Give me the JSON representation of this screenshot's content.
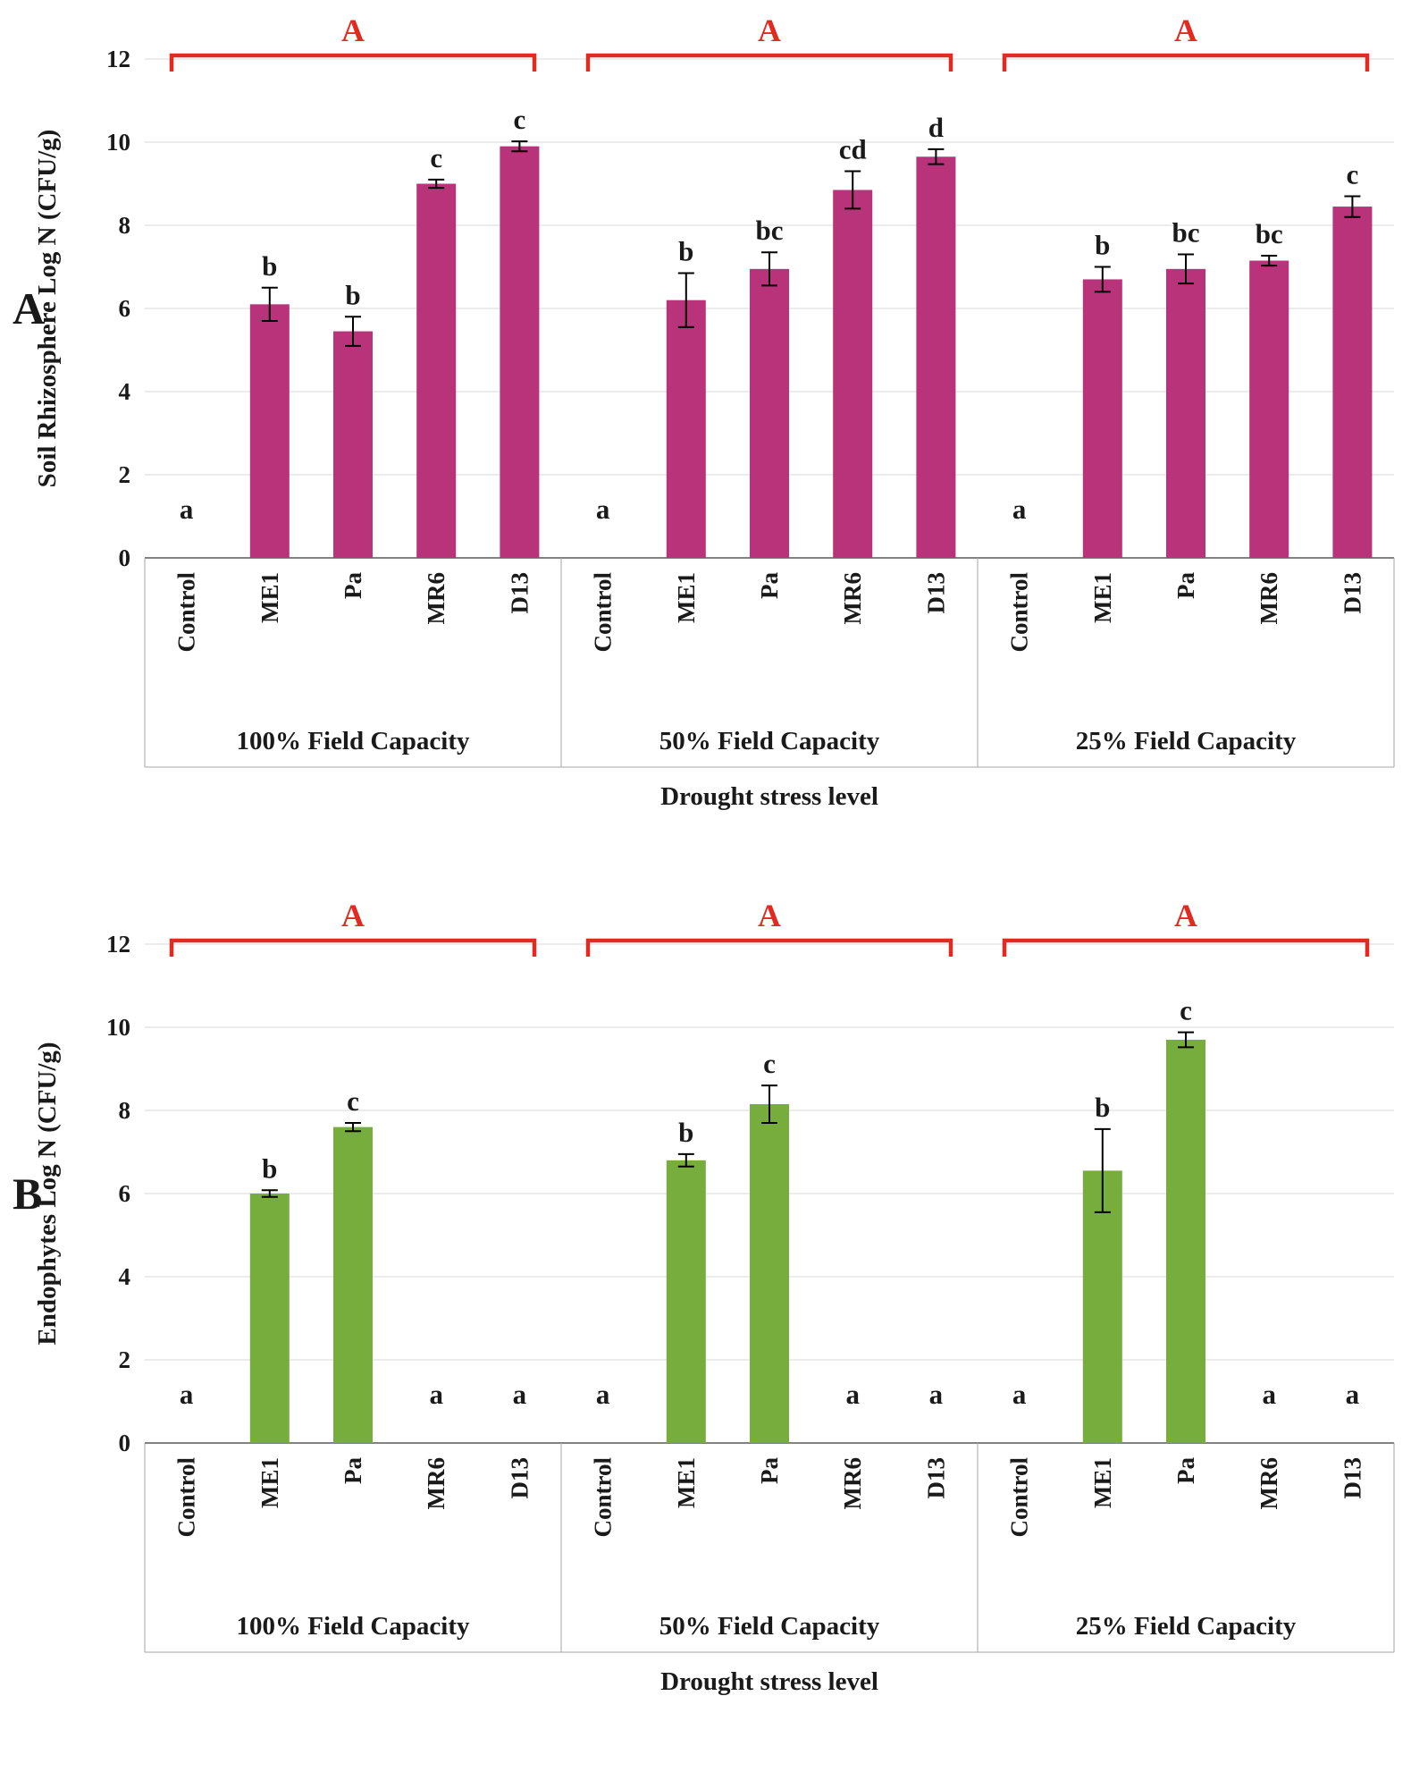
{
  "style": {
    "background": "#ffffff",
    "grid_color": "#d9d9d9",
    "axis_line_color": "#595959",
    "category_box_color": "#a6a6a6",
    "text_color": "#1a1a1a",
    "error_bar_color": "#000000"
  },
  "chart_data": [
    {
      "type": "bar",
      "panel_label": "A",
      "ylabel": "Soil Rhizosphere Log N (CFU/g)",
      "xlabel": "Drought stress level",
      "ylim": [
        0,
        12
      ],
      "yticks": [
        0,
        2,
        4,
        6,
        8,
        10,
        12
      ],
      "grid": true,
      "legend": "none",
      "bar_color": "#b83379",
      "bracket_color": "#e12a20",
      "categories": [
        "Control",
        "ME1",
        "Pa",
        "MR6",
        "D13"
      ],
      "groups": [
        {
          "label": "100% Field Capacity",
          "bracket_letter": "A",
          "values": [
            0,
            6.1,
            5.45,
            9.0,
            9.9
          ],
          "errors": [
            0,
            0.4,
            0.35,
            0.1,
            0.12
          ],
          "letters": [
            "a",
            "b",
            "b",
            "c",
            "c"
          ]
        },
        {
          "label": "50% Field Capacity",
          "bracket_letter": "A",
          "values": [
            0,
            6.2,
            6.95,
            8.85,
            9.65
          ],
          "errors": [
            0,
            0.65,
            0.4,
            0.45,
            0.18
          ],
          "letters": [
            "a",
            "b",
            "bc",
            "cd",
            "d"
          ]
        },
        {
          "label": "25% Field Capacity",
          "bracket_letter": "A",
          "values": [
            0,
            6.7,
            6.95,
            7.15,
            8.45
          ],
          "errors": [
            0,
            0.3,
            0.35,
            0.12,
            0.25
          ],
          "letters": [
            "a",
            "b",
            "bc",
            "bc",
            "c"
          ]
        }
      ]
    },
    {
      "type": "bar",
      "panel_label": "B",
      "ylabel": "Endophytes Log N (CFU/g)",
      "xlabel": "Drought stress level",
      "ylim": [
        0,
        12
      ],
      "yticks": [
        0,
        2,
        4,
        6,
        8,
        10,
        12
      ],
      "grid": true,
      "legend": "none",
      "bar_color": "#76ad3c",
      "bracket_color": "#e12a20",
      "categories": [
        "Control",
        "ME1",
        "Pa",
        "MR6",
        "D13"
      ],
      "groups": [
        {
          "label": "100% Field Capacity",
          "bracket_letter": "A",
          "values": [
            0,
            6.0,
            7.6,
            0,
            0
          ],
          "errors": [
            0,
            0.08,
            0.1,
            0,
            0
          ],
          "letters": [
            "a",
            "b",
            "c",
            "a",
            "a"
          ]
        },
        {
          "label": "50% Field Capacity",
          "bracket_letter": "A",
          "values": [
            0,
            6.8,
            8.15,
            0,
            0
          ],
          "errors": [
            0,
            0.15,
            0.45,
            0,
            0
          ],
          "letters": [
            "a",
            "b",
            "c",
            "a",
            "a"
          ]
        },
        {
          "label": "25% Field Capacity",
          "bracket_letter": "A",
          "values": [
            0,
            6.55,
            9.7,
            0,
            0
          ],
          "errors": [
            0,
            1.0,
            0.18,
            0,
            0
          ],
          "letters": [
            "a",
            "b",
            "c",
            "a",
            "a"
          ]
        }
      ]
    }
  ]
}
